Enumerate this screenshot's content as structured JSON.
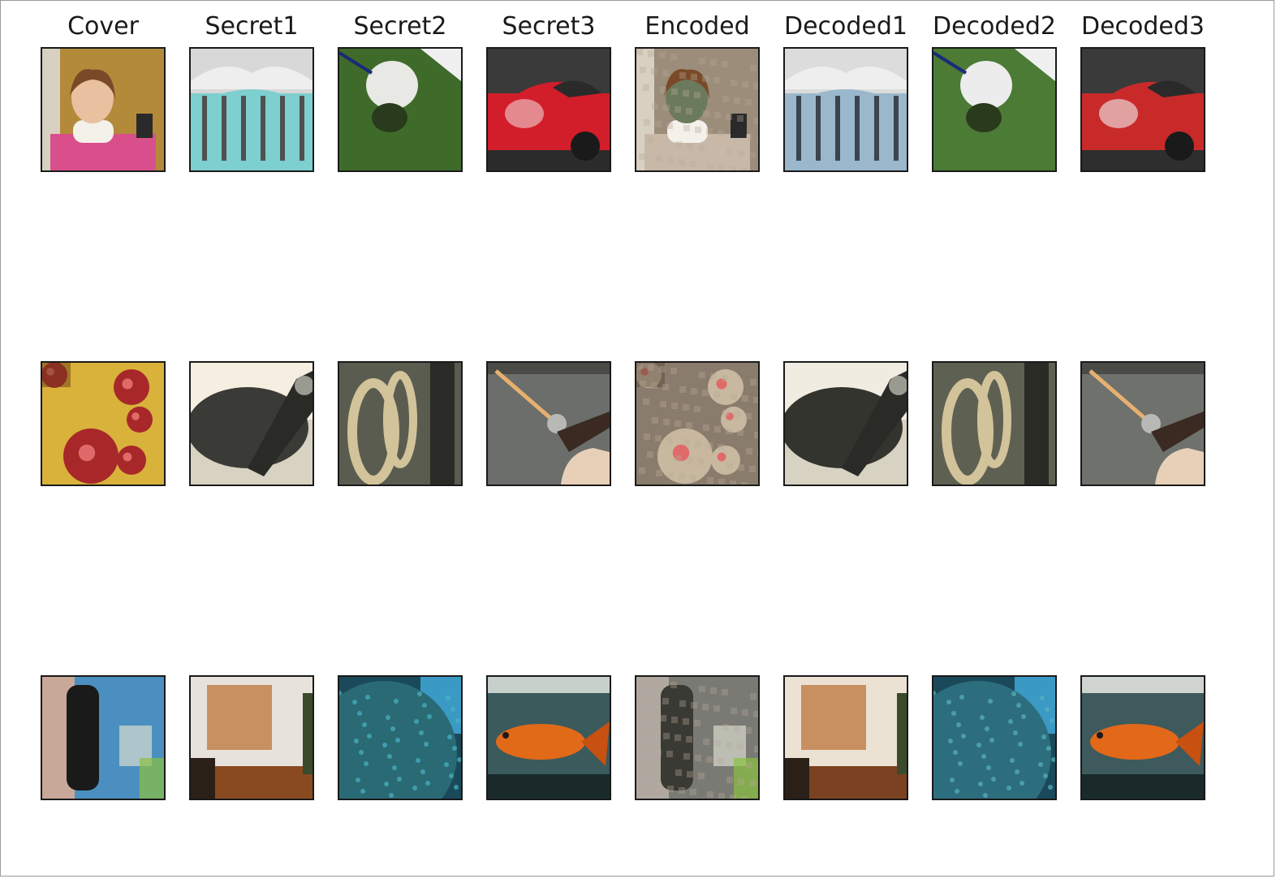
{
  "figure": {
    "columns": [
      {
        "title": "Cover"
      },
      {
        "title": "Secret1"
      },
      {
        "title": "Secret2"
      },
      {
        "title": "Secret3"
      },
      {
        "title": "Encoded"
      },
      {
        "title": "Decoded1"
      },
      {
        "title": "Decoded2"
      },
      {
        "title": "Decoded3"
      }
    ],
    "rows": [
      {
        "subjects": [
          "girl-neck-brace",
          "venice-fountain",
          "white-dog-on-grass",
          "red-porsche",
          "encoded-girl",
          "decoded-fountain",
          "decoded-dog",
          "decoded-porsche"
        ],
        "palettes": [
          [
            "#b38a3a",
            "#d94f8b",
            "#e9c0a0"
          ],
          [
            "#7ecfcf",
            "#d8d8d8",
            "#505050"
          ],
          [
            "#3f6b2a",
            "#e8e8e4",
            "#2a3a1c"
          ],
          [
            "#d21e2a",
            "#2b2b2b",
            "#f0d0d0"
          ],
          [
            "#9c8c7a",
            "#c8b8a8",
            "#6b7a5c"
          ],
          [
            "#9ab7cc",
            "#dcdcdc",
            "#3c4450"
          ],
          [
            "#4b7b34",
            "#ececec",
            "#2a3a1c"
          ],
          [
            "#c82a2a",
            "#2e2e2e",
            "#f2f2f2"
          ]
        ]
      },
      {
        "subjects": [
          "pizza-pepperoni",
          "blurred-bowl",
          "chain-links",
          "fishing-rod",
          "encoded-pizza",
          "decoded-bowl",
          "decoded-chain",
          "decoded-fishing"
        ],
        "palettes": [
          [
            "#d8b23a",
            "#a8282a",
            "#6b3a18"
          ],
          [
            "#f4efe0",
            "#3a3a36",
            "#9a9a90"
          ],
          [
            "#5a5c50",
            "#d2c39a",
            "#2a2a26"
          ],
          [
            "#6b6e6a",
            "#e8b070",
            "#3a2a22"
          ],
          [
            "#8a7c6c",
            "#c8b8a0",
            "#5a4a3c"
          ],
          [
            "#f0ece2",
            "#34342f",
            "#9a9a90"
          ],
          [
            "#5e6052",
            "#d2c39a",
            "#2a2a26"
          ],
          [
            "#6e716c",
            "#e6b070",
            "#3a2a22"
          ]
        ]
      },
      {
        "subjects": [
          "wall-phone",
          "dining-room",
          "coral-sphere",
          "goldfish",
          "encoded-phone",
          "decoded-dining",
          "decoded-coral",
          "decoded-goldfish"
        ],
        "palettes": [
          [
            "#4a8fc0",
            "#1a1a1a",
            "#c8a898"
          ],
          [
            "#e8e2dc",
            "#8a4a20",
            "#c89060"
          ],
          [
            "#2a6a74",
            "#48b4c4",
            "#1a4a5a"
          ],
          [
            "#3a5a5c",
            "#e06a18",
            "#c8d0cc"
          ],
          [
            "#7a7a74",
            "#3a3a34",
            "#b0a8a0"
          ],
          [
            "#ece2d4",
            "#7a4220",
            "#c89060"
          ],
          [
            "#2c6e7e",
            "#58b0c0",
            "#1a4a5a"
          ],
          [
            "#3e5a5c",
            "#e2681a",
            "#d0d4d0"
          ]
        ]
      }
    ]
  }
}
